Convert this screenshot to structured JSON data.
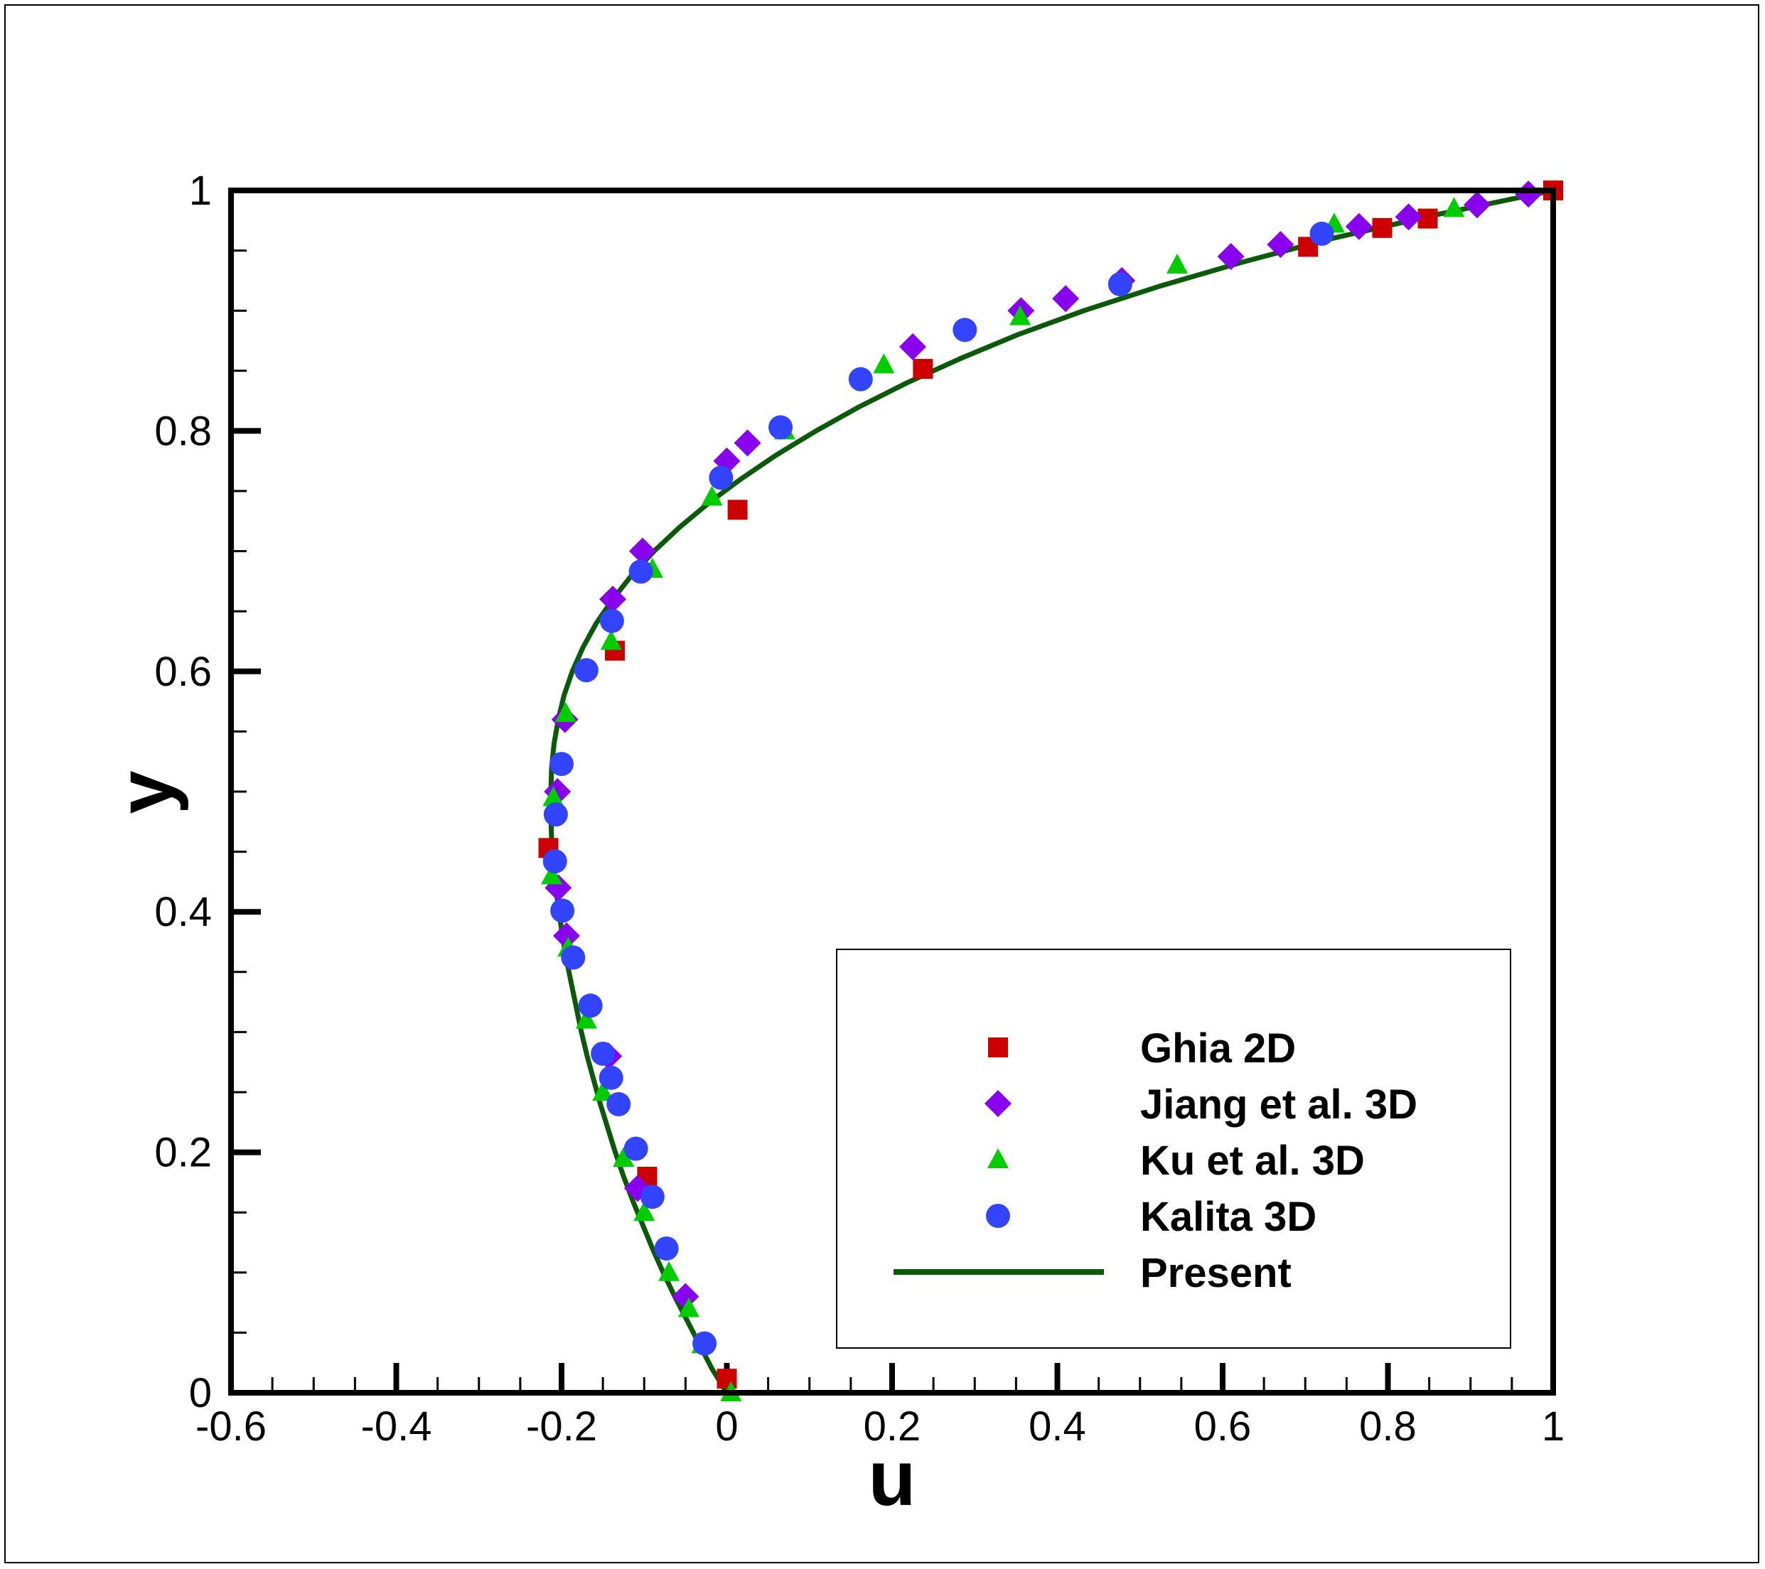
{
  "chart_data": {
    "type": "scatter",
    "title": "",
    "xlabel": "u",
    "ylabel": "y",
    "xlim": [
      -0.6,
      1
    ],
    "ylim": [
      0,
      1
    ],
    "x_ticks": [
      "-0.6",
      "-0.4",
      "-0.2",
      "0",
      "0.2",
      "0.4",
      "0.6",
      "0.8",
      "1"
    ],
    "y_ticks": [
      "0",
      "0.2",
      "0.4",
      "0.6",
      "0.8",
      "1"
    ],
    "grid": false,
    "legend_position": "bottom-right",
    "series": [
      {
        "name": "Ghia 2D",
        "marker": "square",
        "color": "#cc0000",
        "points": [
          [
            0.0,
            0.0117
          ],
          [
            -0.0964,
            0.1797
          ],
          [
            -0.2159,
            0.4531
          ],
          [
            -0.1355,
            0.6172
          ],
          [
            0.013,
            0.7344
          ],
          [
            0.2373,
            0.8516
          ],
          [
            0.7034,
            0.9531
          ],
          [
            0.7931,
            0.9688
          ],
          [
            0.8482,
            0.9766
          ],
          [
            1.0,
            1.0
          ]
        ]
      },
      {
        "name": "Jiang et al. 3D",
        "marker": "diamond",
        "color": "#8800ee",
        "points": [
          [
            -0.05,
            0.08
          ],
          [
            -0.108,
            0.17
          ],
          [
            -0.143,
            0.28
          ],
          [
            -0.194,
            0.38
          ],
          [
            -0.204,
            0.42
          ],
          [
            -0.205,
            0.5
          ],
          [
            -0.196,
            0.56
          ],
          [
            -0.138,
            0.66
          ],
          [
            -0.102,
            0.7
          ],
          [
            0.0,
            0.775
          ],
          [
            0.025,
            0.79
          ],
          [
            0.225,
            0.87
          ],
          [
            0.356,
            0.9
          ],
          [
            0.41,
            0.91
          ],
          [
            0.478,
            0.925
          ],
          [
            0.61,
            0.945
          ],
          [
            0.67,
            0.955
          ],
          [
            0.765,
            0.97
          ],
          [
            0.825,
            0.978
          ],
          [
            0.908,
            0.988
          ],
          [
            0.97,
            0.997
          ]
        ]
      },
      {
        "name": "Ku et al. 3D",
        "marker": "triangle",
        "color": "#00cc00",
        "points": [
          [
            0.005,
            0.0
          ],
          [
            -0.03,
            0.04
          ],
          [
            -0.046,
            0.07
          ],
          [
            -0.07,
            0.1
          ],
          [
            -0.1,
            0.15
          ],
          [
            -0.125,
            0.195
          ],
          [
            -0.15,
            0.25
          ],
          [
            -0.17,
            0.31
          ],
          [
            -0.192,
            0.37
          ],
          [
            -0.212,
            0.43
          ],
          [
            -0.21,
            0.495
          ],
          [
            -0.195,
            0.565
          ],
          [
            -0.14,
            0.625
          ],
          [
            -0.09,
            0.685
          ],
          [
            -0.018,
            0.745
          ],
          [
            0.07,
            0.8
          ],
          [
            0.19,
            0.855
          ],
          [
            0.355,
            0.895
          ],
          [
            0.545,
            0.938
          ],
          [
            0.735,
            0.972
          ],
          [
            0.88,
            0.985
          ]
        ]
      },
      {
        "name": "Kalita 3D",
        "marker": "circle",
        "color": "#3344ff",
        "points": [
          [
            -0.027,
            0.041
          ],
          [
            -0.073,
            0.12
          ],
          [
            -0.09,
            0.163
          ],
          [
            -0.11,
            0.203
          ],
          [
            -0.131,
            0.24
          ],
          [
            -0.14,
            0.262
          ],
          [
            -0.15,
            0.282
          ],
          [
            -0.165,
            0.322
          ],
          [
            -0.186,
            0.362
          ],
          [
            -0.199,
            0.401
          ],
          [
            -0.208,
            0.442
          ],
          [
            -0.207,
            0.481
          ],
          [
            -0.2,
            0.523
          ],
          [
            -0.17,
            0.601
          ],
          [
            -0.139,
            0.642
          ],
          [
            -0.104,
            0.683
          ],
          [
            -0.007,
            0.761
          ],
          [
            0.065,
            0.803
          ],
          [
            0.162,
            0.843
          ],
          [
            0.288,
            0.884
          ],
          [
            0.476,
            0.922
          ],
          [
            0.72,
            0.964
          ]
        ]
      },
      {
        "name": "Present",
        "marker": "line",
        "color": "#0a5a0a",
        "points": [
          [
            0.0,
            0.0
          ],
          [
            -0.018,
            0.02
          ],
          [
            -0.033,
            0.04
          ],
          [
            -0.048,
            0.06
          ],
          [
            -0.063,
            0.08
          ],
          [
            -0.077,
            0.1
          ],
          [
            -0.09,
            0.12
          ],
          [
            -0.102,
            0.14
          ],
          [
            -0.114,
            0.16
          ],
          [
            -0.125,
            0.18
          ],
          [
            -0.135,
            0.2
          ],
          [
            -0.144,
            0.22
          ],
          [
            -0.153,
            0.24
          ],
          [
            -0.161,
            0.26
          ],
          [
            -0.169,
            0.28
          ],
          [
            -0.176,
            0.3
          ],
          [
            -0.182,
            0.32
          ],
          [
            -0.188,
            0.34
          ],
          [
            -0.194,
            0.36
          ],
          [
            -0.199,
            0.38
          ],
          [
            -0.203,
            0.4
          ],
          [
            -0.207,
            0.42
          ],
          [
            -0.21,
            0.44
          ],
          [
            -0.212,
            0.46
          ],
          [
            -0.213,
            0.48
          ],
          [
            -0.213,
            0.5
          ],
          [
            -0.212,
            0.52
          ],
          [
            -0.209,
            0.54
          ],
          [
            -0.204,
            0.56
          ],
          [
            -0.197,
            0.58
          ],
          [
            -0.187,
            0.6
          ],
          [
            -0.174,
            0.62
          ],
          [
            -0.158,
            0.64
          ],
          [
            -0.138,
            0.66
          ],
          [
            -0.115,
            0.68
          ],
          [
            -0.088,
            0.7
          ],
          [
            -0.057,
            0.72
          ],
          [
            -0.022,
            0.74
          ],
          [
            0.017,
            0.76
          ],
          [
            0.06,
            0.78
          ],
          [
            0.108,
            0.8
          ],
          [
            0.16,
            0.82
          ],
          [
            0.218,
            0.84
          ],
          [
            0.282,
            0.86
          ],
          [
            0.352,
            0.88
          ],
          [
            0.432,
            0.9
          ],
          [
            0.522,
            0.92
          ],
          [
            0.622,
            0.94
          ],
          [
            0.732,
            0.96
          ],
          [
            0.86,
            0.98
          ],
          [
            1.0,
            1.0
          ]
        ]
      }
    ]
  }
}
